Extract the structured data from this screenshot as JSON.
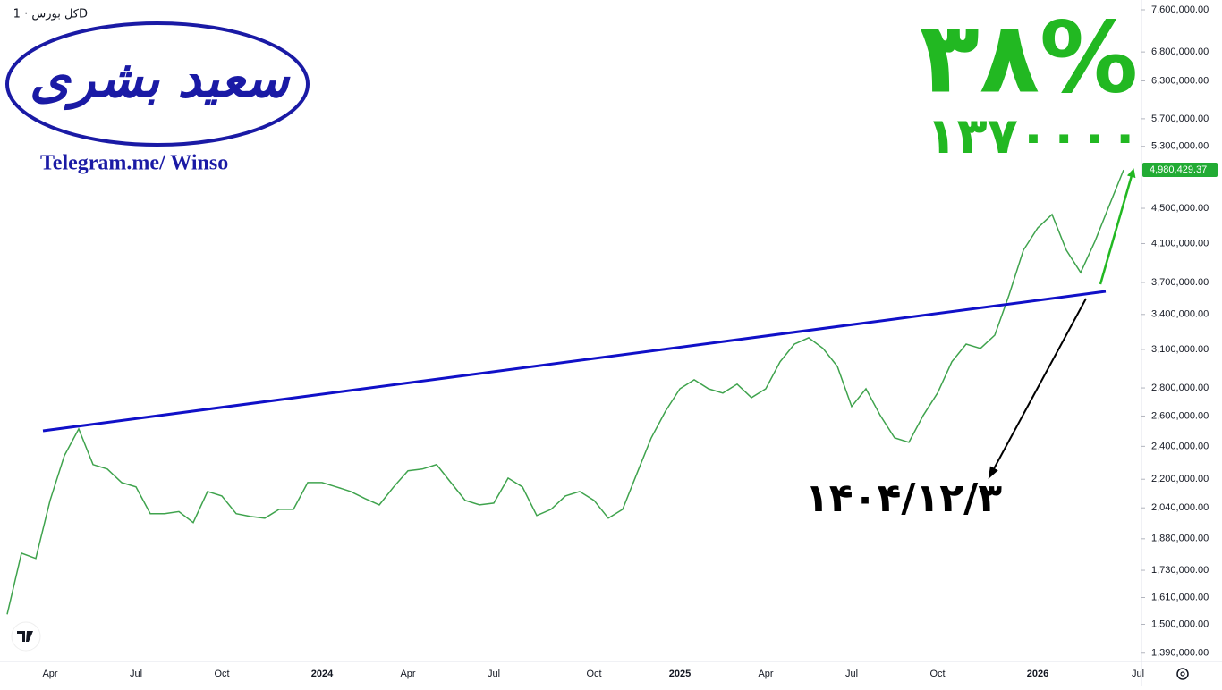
{
  "chart_data": {
    "type": "line",
    "title": "کل بورس · 1D",
    "logo_name": "سعید بشری",
    "logo_link": "Telegram.me/ Winso",
    "annotations": {
      "percent": "۳۸%",
      "points": "۱۳۷۰۰۰۰",
      "date": "۱۴۰۴/۱۲/۳"
    },
    "log_scale": true,
    "grid": false,
    "categories": [
      null,
      null,
      null,
      "Apr",
      null,
      null,
      null,
      null,
      null,
      "Jul",
      null,
      null,
      null,
      null,
      null,
      "Oct",
      null,
      null,
      null,
      null,
      null,
      null,
      "2024",
      null,
      null,
      null,
      null,
      null,
      "Apr",
      null,
      null,
      null,
      null,
      null,
      "Jul",
      null,
      null,
      null,
      null,
      null,
      null,
      "Oct",
      null,
      null,
      null,
      null,
      null,
      "2025",
      null,
      null,
      null,
      null,
      null,
      "Apr",
      null,
      null,
      null,
      null,
      null,
      "Jul",
      null,
      null,
      null,
      null,
      null,
      "Oct",
      null,
      null,
      null,
      null,
      null,
      null,
      "2026",
      null,
      null,
      null,
      null,
      null,
      null,
      "Jul"
    ],
    "series": [
      {
        "name": "کل بورس",
        "color": "#3fa34d",
        "values": [
          1540000,
          1810000,
          1785000,
          2081000,
          2342000,
          2513000,
          2287000,
          2260000,
          2181000,
          2156000,
          2009000,
          2009000,
          2020000,
          1962000,
          2130000,
          2105000,
          2009000,
          1994000,
          1985000,
          2032000,
          2032000,
          2181000,
          2181000,
          2156000,
          2130000,
          2091000,
          2056000,
          2156000,
          2250000,
          2260000,
          2287000,
          2181000,
          2081000,
          2056000,
          2066000,
          2207000,
          2156000,
          1999000,
          2032000,
          2105000,
          2130000,
          2081000,
          1985000,
          2032000,
          2234000,
          2454000,
          2634000,
          2794000,
          2861000,
          2794000,
          2762000,
          2828000,
          2729000,
          2794000,
          3000000,
          3144000,
          3197000,
          3108000,
          2964000,
          2666000,
          2794000,
          2604000,
          2454000,
          2426000,
          2604000,
          2762000,
          3000000,
          3144000,
          3108000,
          3219000,
          3580000,
          4029000,
          4273000,
          4428000,
          4029000,
          3798000,
          4125000,
          4533000,
          4980429.37,
          null
        ]
      }
    ],
    "last_price_label": "4,980,429.37",
    "ylim": [
      1360000,
      7800000
    ],
    "yticks": [
      {
        "value": 7600000,
        "label": "7,600,000.00"
      },
      {
        "value": 6800000,
        "label": "6,800,000.00"
      },
      {
        "value": 6300000,
        "label": "6,300,000.00"
      },
      {
        "value": 5700000,
        "label": "5,700,000.00"
      },
      {
        "value": 5300000,
        "label": "5,300,000.00"
      },
      {
        "value": 4500000,
        "label": "4,500,000.00"
      },
      {
        "value": 4100000,
        "label": "4,100,000.00"
      },
      {
        "value": 3700000,
        "label": "3,700,000.00"
      },
      {
        "value": 3400000,
        "label": "3,400,000.00"
      },
      {
        "value": 3100000,
        "label": "3,100,000.00"
      },
      {
        "value": 2800000,
        "label": "2,800,000.00"
      },
      {
        "value": 2600000,
        "label": "2,600,000.00"
      },
      {
        "value": 2400000,
        "label": "2,400,000.00"
      },
      {
        "value": 2200000,
        "label": "2,200,000.00"
      },
      {
        "value": 2040000,
        "label": "2,040,000.00"
      },
      {
        "value": 1880000,
        "label": "1,880,000.00"
      },
      {
        "value": 1730000,
        "label": "1,730,000.00"
      },
      {
        "value": 1610000,
        "label": "1,610,000.00"
      },
      {
        "value": 1500000,
        "label": "1,500,000.00"
      },
      {
        "value": 1390000,
        "label": "1,390,000.00"
      }
    ]
  }
}
